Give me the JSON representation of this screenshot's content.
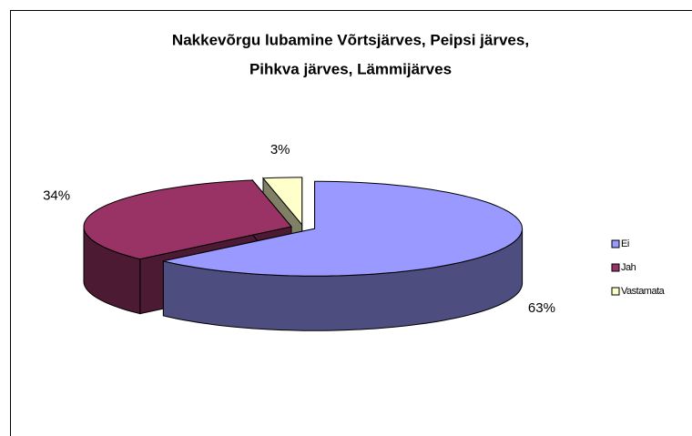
{
  "chart_data": {
    "type": "pie",
    "title": [
      "Nakkevõrgu lubamine Võrtsjärves, Peipsi järves,",
      "Pihkva järves, Lämmijärves"
    ],
    "categories": [
      "Ei",
      "Jah",
      "Vastamata"
    ],
    "values": [
      63,
      34,
      3
    ],
    "value_labels": [
      "63%",
      "34%",
      "3%"
    ],
    "colors": [
      "#9999ff",
      "#993366",
      "#ffffcc"
    ],
    "legend": "right"
  }
}
